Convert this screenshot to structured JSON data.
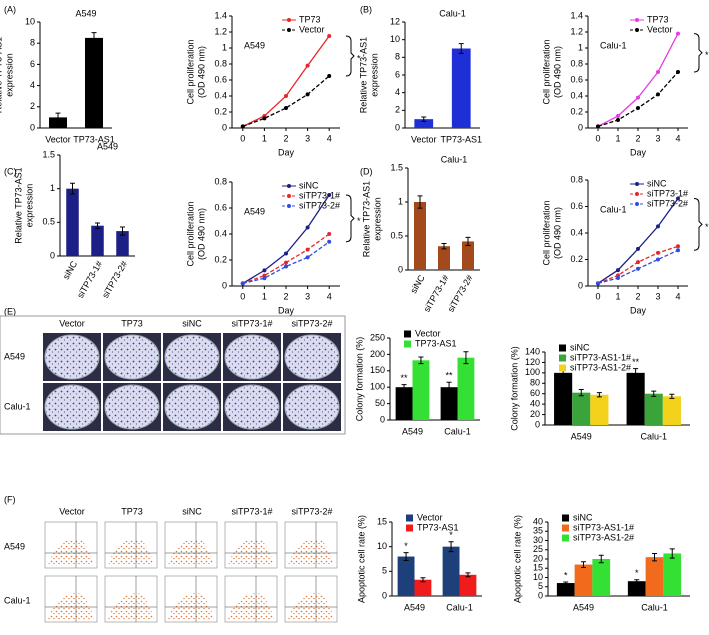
{
  "panels": [
    "(A)",
    "(B)",
    "(C)",
    "(D)",
    "(E)",
    "(F)"
  ],
  "chart_data": [
    {
      "type": "bar",
      "title": "A549",
      "categories": [
        "Vector",
        "TP73-AS1"
      ],
      "values": [
        1,
        8.5
      ],
      "errors": [
        0.4,
        0.5
      ],
      "color": "#000000",
      "ylabel": [
        "Relative TP73-AS1",
        "expression"
      ],
      "ylim": [
        0,
        10
      ],
      "yticks": [
        0,
        2,
        4,
        6,
        8,
        10
      ]
    },
    {
      "type": "line",
      "title": "A549",
      "x": [
        0,
        1,
        2,
        3,
        4
      ],
      "xlim": [
        -0.5,
        4.5
      ],
      "xticks": [
        0,
        1,
        2,
        3,
        4
      ],
      "xlabel": "Day",
      "ylabel": [
        "Cell proliferation",
        "(OD 490 nm)"
      ],
      "ylim": [
        0,
        1.4
      ],
      "yticks": [
        0,
        0.2,
        0.4,
        0.6,
        0.8,
        1,
        1.2,
        1.4
      ],
      "legend": "upper right",
      "annotation": "*",
      "series": [
        {
          "name": "TP73",
          "color": "#e8262a",
          "dashed": false,
          "values": [
            0.02,
            0.15,
            0.4,
            0.78,
            1.15
          ]
        },
        {
          "name": "Vector",
          "color": "#000000",
          "dashed": true,
          "values": [
            0.02,
            0.12,
            0.25,
            0.42,
            0.65
          ]
        }
      ]
    },
    {
      "type": "bar",
      "title": "Calu-1",
      "categories": [
        "Vector",
        "TP73-AS1"
      ],
      "values": [
        1,
        9
      ],
      "errors": [
        0.25,
        0.55
      ],
      "color": "#1f2fd6",
      "ylabel": [
        "Relative TP73-AS1",
        "expression"
      ],
      "ylim": [
        0,
        12
      ],
      "yticks": [
        0,
        2,
        4,
        6,
        8,
        10,
        12
      ]
    },
    {
      "type": "line",
      "title": "Calu-1",
      "x": [
        0,
        1,
        2,
        3,
        4
      ],
      "xlim": [
        -0.5,
        4.5
      ],
      "xticks": [
        0,
        1,
        2,
        3,
        4
      ],
      "xlabel": "Day",
      "ylabel": [
        "Cell proliferation",
        "(OD 490 nm)"
      ],
      "ylim": [
        0,
        1.4
      ],
      "yticks": [
        0,
        0.2,
        0.4,
        0.6,
        0.8,
        1,
        1.2,
        1.4
      ],
      "legend": "upper right",
      "annotation": "*",
      "series": [
        {
          "name": "TP73",
          "color": "#e83be0",
          "dashed": false,
          "values": [
            0.02,
            0.15,
            0.38,
            0.7,
            1.18
          ]
        },
        {
          "name": "Vector",
          "color": "#000000",
          "dashed": true,
          "values": [
            0.02,
            0.1,
            0.25,
            0.42,
            0.7
          ]
        }
      ]
    },
    {
      "type": "bar",
      "title": "A549",
      "categories": [
        "siNC",
        "siTP73-1#",
        "siTP73-2#"
      ],
      "values": [
        1,
        0.45,
        0.37
      ],
      "errors": [
        0.08,
        0.04,
        0.06
      ],
      "color": "#1c1f85",
      "xtick_rotation": -60,
      "ylabel": [
        "Relative TP73-AS1",
        "expression"
      ],
      "ylim": [
        0,
        1.5
      ],
      "yticks": [
        0,
        0.5,
        1,
        1.5
      ]
    },
    {
      "type": "line",
      "title": "A549",
      "x": [
        0,
        1,
        2,
        3,
        4
      ],
      "xlim": [
        -0.5,
        4.5
      ],
      "xticks": [
        0,
        1,
        2,
        3,
        4
      ],
      "xlabel": "Day",
      "ylabel": [
        "Cell proliferation",
        "(OD 490 nm)"
      ],
      "ylim": [
        0,
        0.8
      ],
      "yticks": [
        0,
        0.2,
        0.4,
        0.6,
        0.8
      ],
      "legend": "upper right",
      "annotation": "*",
      "series": [
        {
          "name": "siNC",
          "color": "#1c1f85",
          "dashed": false,
          "values": [
            0.02,
            0.12,
            0.25,
            0.45,
            0.7
          ]
        },
        {
          "name": "siTP73-1#",
          "color": "#e8262a",
          "dashed": true,
          "values": [
            0.02,
            0.08,
            0.18,
            0.28,
            0.4
          ]
        },
        {
          "name": "siTP73-2#",
          "color": "#2f4ee0",
          "dashed": true,
          "values": [
            0.02,
            0.06,
            0.15,
            0.22,
            0.34
          ]
        }
      ]
    },
    {
      "type": "bar",
      "title": "Calu-1",
      "categories": [
        "siNC",
        "siTP73-1#",
        "siTP73-2#"
      ],
      "values": [
        1,
        0.35,
        0.42
      ],
      "errors": [
        0.09,
        0.04,
        0.06
      ],
      "color": "#a34a1c",
      "xtick_rotation": -60,
      "ylabel": [
        "Relative TP73-AS1",
        "expression"
      ],
      "ylim": [
        0,
        1.5
      ],
      "yticks": [
        0,
        0.5,
        1,
        1.5
      ]
    },
    {
      "type": "line",
      "title": "Calu-1",
      "x": [
        0,
        1,
        2,
        3,
        4
      ],
      "xlim": [
        -0.5,
        4.5
      ],
      "xticks": [
        0,
        1,
        2,
        3,
        4
      ],
      "xlabel": "Day",
      "ylabel": [
        "Cell proliferation",
        "(OD 490 nm)"
      ],
      "ylim": [
        0,
        0.8
      ],
      "yticks": [
        0,
        0.2,
        0.4,
        0.6,
        0.8
      ],
      "legend": "upper right",
      "annotation": "*",
      "series": [
        {
          "name": "siNC",
          "color": "#1c1f85",
          "dashed": false,
          "values": [
            0.02,
            0.12,
            0.28,
            0.45,
            0.66
          ]
        },
        {
          "name": "siTP73-1#",
          "color": "#e8262a",
          "dashed": true,
          "values": [
            0.02,
            0.08,
            0.18,
            0.25,
            0.3
          ]
        },
        {
          "name": "siTP73-2#",
          "color": "#2f4ee0",
          "dashed": true,
          "values": [
            0.02,
            0.06,
            0.13,
            0.2,
            0.27
          ]
        }
      ]
    },
    {
      "type": "bar",
      "categories": [
        "A549",
        "Calu-1"
      ],
      "ylabel": [
        "Colony formation (%)"
      ],
      "ylim": [
        0,
        250
      ],
      "yticks": [
        0,
        50,
        100,
        150,
        200,
        250
      ],
      "legend": "upper left",
      "annotation": "**",
      "series": [
        {
          "name": "Vector",
          "color": "#000000",
          "values": [
            100,
            100
          ],
          "errors": [
            8,
            15
          ]
        },
        {
          "name": "TP73-AS1",
          "color": "#33e033",
          "values": [
            182,
            190
          ],
          "errors": [
            10,
            18
          ]
        }
      ]
    },
    {
      "type": "bar",
      "categories": [
        "A549",
        "Calu-1"
      ],
      "ylabel": [
        "Colony formation (%)"
      ],
      "ylim": [
        0,
        140
      ],
      "yticks": [
        0,
        20,
        40,
        60,
        80,
        100,
        120,
        140
      ],
      "legend": "upper left",
      "annotation": "**",
      "series": [
        {
          "name": "siNC",
          "color": "#000000",
          "values": [
            100,
            100
          ],
          "errors": [
            14,
            8
          ]
        },
        {
          "name": "siTP73-AS1-1#",
          "color": "#3aa43a",
          "values": [
            62,
            60
          ],
          "errors": [
            6,
            5
          ]
        },
        {
          "name": "siTP73-AS1-2#",
          "color": "#f2d21b",
          "values": [
            58,
            55
          ],
          "errors": [
            4,
            4
          ]
        }
      ]
    },
    {
      "type": "bar",
      "categories": [
        "A549",
        "Calu-1"
      ],
      "ylabel": [
        "Apoptotic cell rate (%)"
      ],
      "ylim": [
        0,
        15
      ],
      "yticks": [
        0,
        5,
        10,
        15
      ],
      "legend": "upper left",
      "annotation": "*",
      "series": [
        {
          "name": "Vector",
          "color": "#1d3f7a",
          "values": [
            8,
            10
          ],
          "errors": [
            0.8,
            1
          ]
        },
        {
          "name": "TP73-AS1",
          "color": "#f01c1c",
          "values": [
            3.3,
            4.3
          ],
          "errors": [
            0.4,
            0.4
          ]
        }
      ]
    },
    {
      "type": "bar",
      "categories": [
        "A549",
        "Calu-1"
      ],
      "ylabel": [
        "Apoptotic cell rate (%)"
      ],
      "ylim": [
        0,
        40
      ],
      "yticks": [
        0,
        5,
        10,
        15,
        20,
        25,
        30,
        35,
        40
      ],
      "legend": "upper left",
      "annotation": "*",
      "series": [
        {
          "name": "siNC",
          "color": "#000000",
          "values": [
            7,
            8
          ],
          "errors": [
            0.6,
            0.8
          ]
        },
        {
          "name": "siTP73-AS1-1#",
          "color": "#f26b1c",
          "values": [
            17,
            21
          ],
          "errors": [
            1.5,
            2
          ]
        },
        {
          "name": "siTP73-AS1-2#",
          "color": "#33e033",
          "values": [
            20,
            23
          ],
          "errors": [
            2,
            2.5
          ]
        }
      ]
    }
  ],
  "colony_images": {
    "columns": [
      "Vector",
      "TP73",
      "siNC",
      "siTP73-1#",
      "siTP73-2#"
    ],
    "rows": [
      "A549",
      "Calu-1"
    ]
  },
  "flow_images": {
    "columns": [
      "Vector",
      "TP73",
      "siNC",
      "siTP73-1#",
      "siTP73-2#"
    ],
    "rows": [
      "A549",
      "Calu-1"
    ]
  }
}
